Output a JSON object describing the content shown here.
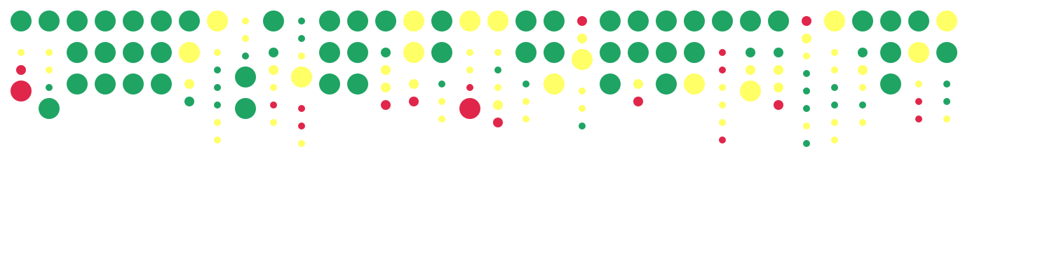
{
  "chart_data": {
    "type": "dot-column",
    "legend": "none",
    "grid": false,
    "colors": {
      "green": "#1fa463",
      "yellow": "#ffff66",
      "red": "#e0264a"
    },
    "size_legend": {
      "L": "large",
      "M": "medium",
      "S": "small"
    },
    "columns": [
      [
        "gL",
        "yS",
        "rM",
        "rL"
      ],
      [
        "gL",
        "yS",
        "yS",
        "gS",
        "gL"
      ],
      [
        "gL",
        "gL",
        "gL"
      ],
      [
        "gL",
        "gL",
        "gL"
      ],
      [
        "gL",
        "gL",
        "gL"
      ],
      [
        "gL",
        "gL",
        "gL"
      ],
      [
        "gL",
        "yL",
        "yM",
        "gM"
      ],
      [
        "yL",
        "yS",
        "gS",
        "gS",
        "gS",
        "yS",
        "yS"
      ],
      [
        "yS",
        "yS",
        "gS",
        "gL",
        "gL"
      ],
      [
        "gL",
        "gM",
        "yM",
        "yS",
        "rS",
        "yS"
      ],
      [
        "gS",
        "gS",
        "yS",
        "yL",
        "rS",
        "rS",
        "yS"
      ],
      [
        "gL",
        "gL",
        "gL"
      ],
      [
        "gL",
        "gL",
        "gL"
      ],
      [
        "gL",
        "gM",
        "yM",
        "yM",
        "rM"
      ],
      [
        "yL",
        "yL",
        "yM",
        "rM"
      ],
      [
        "gL",
        "gL",
        "gS",
        "yS",
        "yS"
      ],
      [
        "yL",
        "yS",
        "yS",
        "rS",
        "rL"
      ],
      [
        "yL",
        "yS",
        "gS",
        "yS",
        "yM",
        "rM"
      ],
      [
        "gL",
        "gL",
        "gS",
        "yS",
        "yS"
      ],
      [
        "gL",
        "gL",
        "yL"
      ],
      [
        "rM",
        "yM",
        "yL",
        "yS",
        "yS",
        "gS"
      ],
      [
        "gL",
        "gL",
        "gL"
      ],
      [
        "gL",
        "gL",
        "yM",
        "rM"
      ],
      [
        "gL",
        "gL",
        "gL"
      ],
      [
        "gL",
        "gL",
        "yL"
      ],
      [
        "gL",
        "rS",
        "rS",
        "yS",
        "yS",
        "yS",
        "rS"
      ],
      [
        "gL",
        "gM",
        "yM",
        "yL"
      ],
      [
        "gL",
        "gM",
        "yM",
        "yM",
        "rM"
      ],
      [
        "rM",
        "yM",
        "yS",
        "gS",
        "gS",
        "gS",
        "yS",
        "gS"
      ],
      [
        "yL",
        "yS",
        "yS",
        "gS",
        "gS",
        "yS",
        "yS"
      ],
      [
        "gL",
        "gM",
        "yM",
        "yS",
        "gS",
        "yS"
      ],
      [
        "gL",
        "gL",
        "gL"
      ],
      [
        "gL",
        "yL",
        "yS",
        "rS",
        "rS"
      ],
      [
        "yL",
        "gL",
        "gS",
        "gS",
        "yS"
      ]
    ]
  }
}
